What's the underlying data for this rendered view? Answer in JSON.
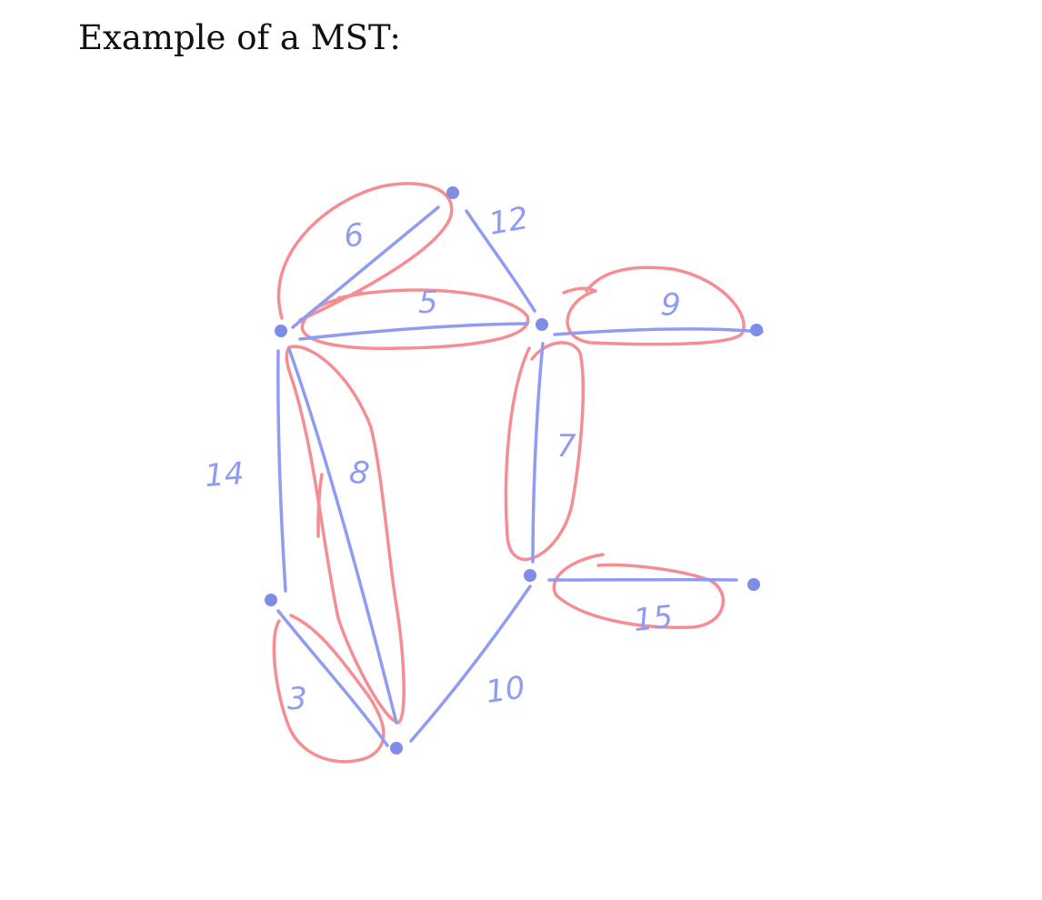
{
  "title": "Example of a MST:",
  "colors": {
    "edge": "#8f9cf2",
    "node": "#7f8de9",
    "mst_highlight": "#f58e93",
    "text": "#111111"
  },
  "graph": {
    "nodes": [
      {
        "id": "A"
      },
      {
        "id": "B"
      },
      {
        "id": "C"
      },
      {
        "id": "D"
      },
      {
        "id": "E"
      },
      {
        "id": "F"
      },
      {
        "id": "G"
      },
      {
        "id": "H"
      }
    ],
    "edges": [
      {
        "id": "e-A-B",
        "from": "A",
        "to": "B",
        "weight": "6",
        "in_mst": true
      },
      {
        "id": "e-A-C",
        "from": "A",
        "to": "C",
        "weight": "12",
        "in_mst": false
      },
      {
        "id": "e-B-C",
        "from": "B",
        "to": "C",
        "weight": "5",
        "in_mst": true
      },
      {
        "id": "e-C-D",
        "from": "C",
        "to": "D",
        "weight": "9",
        "in_mst": true
      },
      {
        "id": "e-C-F",
        "from": "C",
        "to": "F",
        "weight": "7",
        "in_mst": true
      },
      {
        "id": "e-B-E",
        "from": "B",
        "to": "E",
        "weight": "14",
        "in_mst": false
      },
      {
        "id": "e-B-H",
        "from": "B",
        "to": "H",
        "weight": "8",
        "in_mst": true
      },
      {
        "id": "e-E-H",
        "from": "E",
        "to": "H",
        "weight": "3",
        "in_mst": true
      },
      {
        "id": "e-H-F",
        "from": "H",
        "to": "F",
        "weight": "10",
        "in_mst": false
      },
      {
        "id": "e-F-G",
        "from": "F",
        "to": "G",
        "weight": "15",
        "in_mst": true
      }
    ]
  }
}
